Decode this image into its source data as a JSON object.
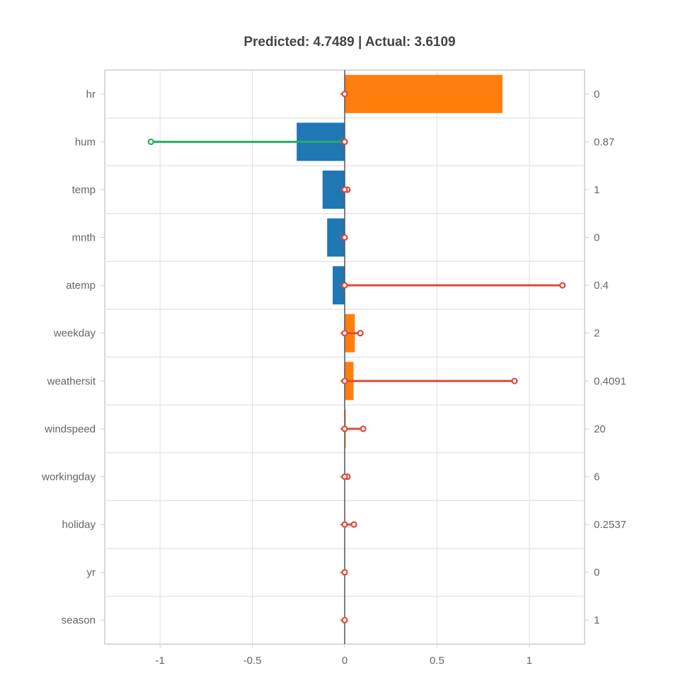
{
  "chart_data": {
    "type": "bar",
    "orientation": "horizontal",
    "title": "Predicted: 4.7489 | Actual: 3.6109",
    "xlabel": "",
    "ylabel": "",
    "x_ticks": [
      -1,
      -0.5,
      0,
      0.5,
      1
    ],
    "x_tick_labels": [
      "-1",
      "-0.5",
      "0",
      "0.5",
      "1"
    ],
    "xlim": [
      -1.3,
      1.3
    ],
    "grid": true,
    "legend": "none",
    "colors": {
      "positive_bar": "#ff7f0e",
      "negative_bar": "#1f77b4",
      "positive_line": "#e04a3c",
      "negative_line": "#27ae60",
      "grid": "#e0e6ef",
      "frame": "#cccccc",
      "zero_line": "#555555",
      "text": "#666666",
      "title": "#444444"
    },
    "categories": [
      "hr",
      "hum",
      "temp",
      "mnth",
      "atemp",
      "weekday",
      "weathersit",
      "windspeed",
      "workingday",
      "holiday",
      "yr",
      "season"
    ],
    "bar_values": [
      0.855,
      -0.26,
      -0.12,
      -0.095,
      -0.065,
      0.055,
      0.048,
      0.003,
      0,
      0,
      0,
      0
    ],
    "line_end_values": [
      0,
      -1.05,
      0.015,
      0,
      1.18,
      0.085,
      0.92,
      0.1,
      0.015,
      0.05,
      0,
      0
    ],
    "feature_values": [
      "0",
      "0.87",
      "1",
      "0",
      "0.4",
      "2",
      "0.4091",
      "20",
      "6",
      "0.2537",
      "0",
      "1"
    ]
  }
}
